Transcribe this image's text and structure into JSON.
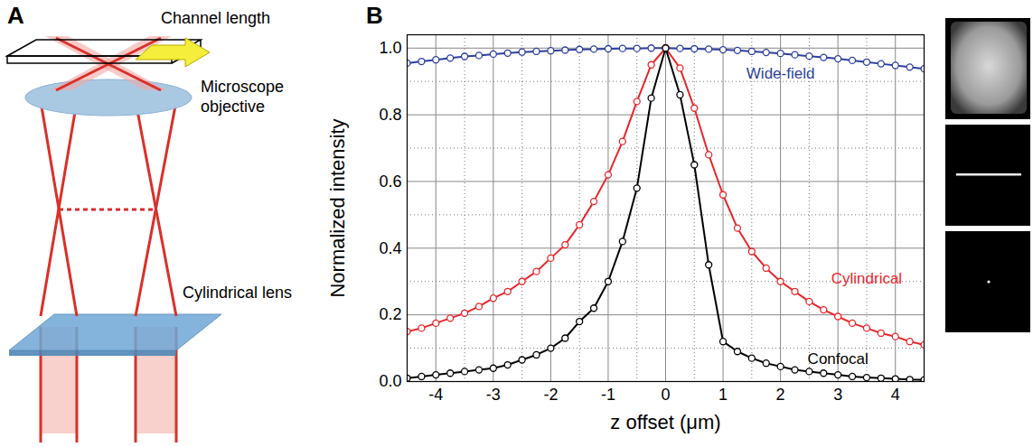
{
  "panel_labels": {
    "diagram": "A",
    "chart": "B"
  },
  "diagram": {
    "labels": {
      "channel": "Channel length",
      "objective": "Microscope objective",
      "lens": "Cylindrical lens"
    }
  },
  "chart_data": {
    "type": "line",
    "x_label": "z offset (μm)",
    "y_label": "Normalized intensity",
    "xlim": [
      -4.5,
      4.5
    ],
    "xticks": [
      -4,
      -3,
      -2,
      -1,
      0,
      1,
      2,
      3,
      4
    ],
    "ylim": [
      0,
      1.04
    ],
    "yticks": [
      {
        "value": 0,
        "label": "0.0"
      },
      0.2,
      0.4,
      0.6,
      0.8,
      {
        "value": 1,
        "label": "1.0"
      }
    ],
    "grid": true,
    "marker": "circle",
    "line_style": "solid",
    "x": [
      -4.5,
      -4.25,
      -4,
      -3.75,
      -3.5,
      -3.25,
      -3,
      -2.75,
      -2.5,
      -2.25,
      -2,
      -1.75,
      -1.5,
      -1.25,
      -1,
      -0.75,
      -0.5,
      -0.25,
      0,
      0.25,
      0.5,
      0.75,
      1,
      1.25,
      1.5,
      1.75,
      2,
      2.25,
      2.5,
      2.75,
      3,
      3.25,
      3.5,
      3.75,
      4,
      4.25,
      4.5
    ],
    "series": [
      {
        "name": "Wide-field",
        "color": "#2e3f9e",
        "values": [
          0.955,
          0.96,
          0.965,
          0.97,
          0.975,
          0.978,
          0.982,
          0.985,
          0.988,
          0.99,
          0.992,
          0.994,
          0.996,
          0.997,
          0.998,
          0.999,
          0.999,
          1.0,
          1.0,
          0.999,
          0.998,
          0.997,
          0.995,
          0.993,
          0.99,
          0.987,
          0.984,
          0.98,
          0.976,
          0.972,
          0.968,
          0.963,
          0.958,
          0.953,
          0.948,
          0.943,
          0.938
        ]
      },
      {
        "name": "Cylindrical",
        "color": "#e8262a",
        "values": [
          0.15,
          0.16,
          0.175,
          0.19,
          0.205,
          0.225,
          0.25,
          0.27,
          0.3,
          0.33,
          0.37,
          0.41,
          0.47,
          0.54,
          0.62,
          0.72,
          0.84,
          0.95,
          1.0,
          0.94,
          0.82,
          0.68,
          0.56,
          0.46,
          0.39,
          0.34,
          0.3,
          0.27,
          0.24,
          0.215,
          0.195,
          0.175,
          0.16,
          0.145,
          0.135,
          0.12,
          0.11
        ]
      },
      {
        "name": "Confocal",
        "color": "#000000",
        "values": [
          0.01,
          0.015,
          0.02,
          0.025,
          0.03,
          0.035,
          0.04,
          0.05,
          0.065,
          0.08,
          0.1,
          0.13,
          0.18,
          0.22,
          0.3,
          0.42,
          0.58,
          0.85,
          1.0,
          0.86,
          0.65,
          0.35,
          0.12,
          0.09,
          0.07,
          0.055,
          0.045,
          0.035,
          0.03,
          0.025,
          0.02,
          0.015,
          0.012,
          0.01,
          0.008,
          0.006,
          0.005
        ]
      }
    ]
  }
}
